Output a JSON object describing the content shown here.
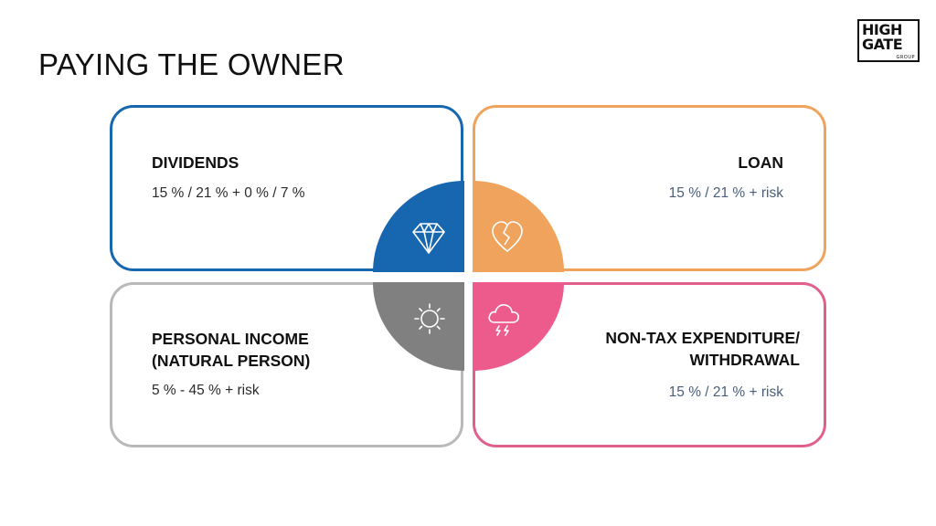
{
  "title": "PAYING THE OWNER",
  "logo": {
    "line1": "HIGH",
    "line2": "GATE",
    "line3": "GROUP"
  },
  "cards": {
    "dividends": {
      "heading": "DIVIDENDS",
      "value": "15 % / 21 % + 0 % / 7 %",
      "icon": "diamond-icon",
      "color": "#1767b0"
    },
    "loan": {
      "heading": "LOAN",
      "value": "15 % / 21 % + risk",
      "icon": "broken-heart-icon",
      "color": "#f0a35c"
    },
    "personal_income": {
      "heading_line1": "PERSONAL INCOME",
      "heading_line2": "(NATURAL PERSON)",
      "value": "5 % - 45 % + risk",
      "icon": "sun-icon",
      "color": "#808080"
    },
    "non_tax": {
      "heading_line1": "NON-TAX EXPENDITURE/",
      "heading_line2": "WITHDRAWAL",
      "value": "15 % / 21 % + risk",
      "icon": "storm-cloud-icon",
      "color": "#ec5b8b"
    }
  }
}
